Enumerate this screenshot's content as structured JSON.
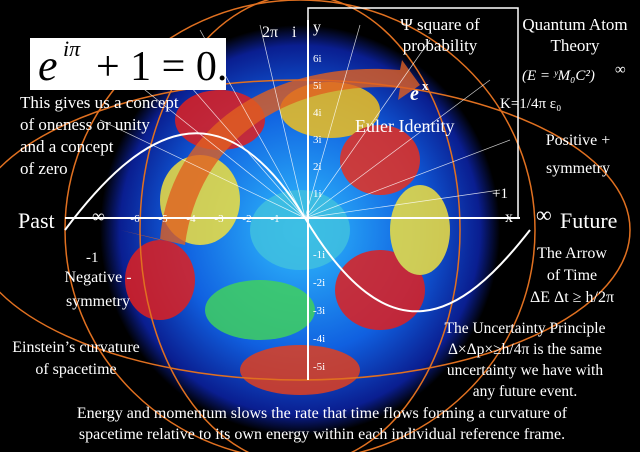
{
  "formula": {
    "base": "e",
    "exponent": "iπ",
    "rest": "+ 1 = 0."
  },
  "left_note": [
    "This gives us a concept",
    "of oneness or unity",
    "and a concept",
    "of zero"
  ],
  "psi_note": [
    "Ψ square of",
    "probability"
  ],
  "quantum": [
    "Quantum Atom",
    "Theory"
  ],
  "quantum_formula": "(E = ʸM₀C²)",
  "quantum_inf": "∞",
  "euler": "Euler Identity",
  "ex": {
    "base": "e",
    "exponent": "x"
  },
  "coulomb": "K=1/4π ε₀",
  "positive": [
    "Positive +",
    "symmetry"
  ],
  "axis": {
    "past": "Past",
    "future": "Future",
    "left_inf": "∞",
    "right_inf": "∞",
    "plus_one": "+1",
    "minus_one": "-1",
    "x": "x",
    "y": "y",
    "two_pi": "2π",
    "i": "i",
    "real_ticks": [
      "-6",
      "-5",
      "-4",
      "-3",
      "-2",
      "-1"
    ],
    "imag_ticks_up": [
      "6i",
      "5i",
      "4i",
      "3i",
      "2i",
      "1i"
    ],
    "imag_ticks_down": [
      "-1i",
      "-2i",
      "-3i",
      "-4i",
      "-5i"
    ]
  },
  "negative": [
    "Negative -",
    "symmetry"
  ],
  "arrow_of_time": [
    "The Arrow",
    "of Time",
    "ΔE Δt ≥ h/2π"
  ],
  "einstein": [
    "Einstein’s curvature",
    "of spacetime"
  ],
  "uncertainty": [
    "The Uncertainty Principle",
    "Δ×Δp×≥h/4π is the same",
    "uncertainty we have with",
    "any future event."
  ],
  "footer": [
    "Energy and momentum slows the rate that time flows forming a curvature of",
    "spacetime relative to its own energy within each individual reference frame."
  ]
}
